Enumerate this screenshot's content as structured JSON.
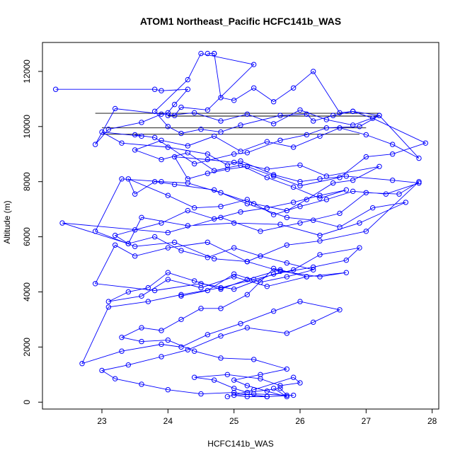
{
  "chart_data": {
    "type": "scatter",
    "title": "ATOM1 Northeast_Pacific HCFC141b_WAS",
    "xlabel": "HCFC141b_WAS",
    "ylabel": "Altitude (m)",
    "xlim": [
      22.1,
      28.1
    ],
    "ylim": [
      -250,
      13050
    ],
    "xticks": [
      23,
      24,
      25,
      26,
      27,
      28
    ],
    "yticks": [
      0,
      2000,
      4000,
      6000,
      8000,
      10000,
      12000
    ],
    "grid": false,
    "legend": "none",
    "colors": {
      "series": "#0000ff",
      "axis": "#000000",
      "background": "#ffffff"
    },
    "series": [
      {
        "mode": "lines+markers",
        "x": [
          22.3,
          23.8,
          23.9,
          24.3,
          24.1,
          24.0,
          23.9,
          23.6,
          23.1,
          22.9,
          23.2,
          24.1,
          24.2,
          24.6,
          25.3,
          24.5,
          24.3,
          23.8,
          24.0,
          24.2,
          24.5,
          24.8,
          25.1,
          25.7,
          26.1,
          26.2,
          26.5,
          26.8,
          27.2,
          26.9,
          26.4,
          26.1,
          25.7,
          25.2,
          25.0,
          24.4,
          23.8,
          23.5,
          23.6,
          23.0,
          23.3,
          24.0,
          24.6,
          24.9,
          25.1,
          25.6,
          26.0,
          26.3,
          26.7,
          27.4,
          27.8,
          27.3,
          26.8,
          26.4,
          26.0,
          25.6,
          25.2,
          24.8,
          24.4,
          24.0,
          23.4,
          23.5,
          23.8,
          24.1,
          24.7,
          25.2,
          25.8,
          26.2,
          26.6,
          27.1,
          27.6,
          26.9,
          26.3,
          25.7,
          25.0,
          24.3,
          23.6,
          23.4,
          22.4,
          24.0,
          24.8,
          25.4,
          26.0,
          26.6,
          27.0,
          27.5,
          27.8,
          27.0,
          26.3,
          25.8,
          25.2,
          24.6,
          24.0,
          23.5,
          23.2,
          22.9,
          23.8,
          24.5,
          25.0,
          25.6,
          26.2,
          26.7,
          26.9,
          26.3,
          25.9,
          25.3,
          24.8,
          24.2,
          23.7,
          23.1,
          22.7,
          23.3,
          23.9,
          24.2,
          24.6,
          25.1,
          25.6,
          26.0,
          26.6,
          26.2,
          25.8,
          25.2,
          24.8,
          24.3,
          23.9,
          23.4,
          23.0,
          23.2,
          23.6,
          24.0,
          24.5,
          25.0,
          25.5,
          25.9,
          25.5,
          25.2,
          25.0,
          25.3,
          25.8,
          25.7,
          25.2,
          25.0,
          24.7,
          24.4,
          24.9,
          25.4,
          25.7,
          26.0,
          25.9,
          25.3,
          24.9
        ],
        "y": [
          11350,
          11350,
          11300,
          11350,
          10800,
          10500,
          10450,
          10150,
          9900,
          9350,
          10650,
          10400,
          10700,
          10600,
          12250,
          12650,
          11700,
          10550,
          10000,
          9750,
          9900,
          9800,
          10050,
          10400,
          10450,
          10200,
          10400,
          10550,
          10400,
          10000,
          9950,
          9700,
          9500,
          9050,
          9000,
          8650,
          9600,
          9700,
          9650,
          9800,
          9400,
          9250,
          9000,
          8600,
          8750,
          8250,
          8000,
          8100,
          8200,
          8050,
          7950,
          7550,
          7650,
          7350,
          7100,
          6800,
          7350,
          7100,
          7050,
          7500,
          8100,
          7550,
          8000,
          7900,
          7700,
          7200,
          6700,
          6600,
          6350,
          7050,
          7250,
          6500,
          6050,
          6450,
          6500,
          6400,
          6700,
          5750,
          6500,
          6150,
          6700,
          6200,
          6500,
          6850,
          7600,
          7550,
          8000,
          6200,
          5850,
          5700,
          5100,
          5800,
          5600,
          5300,
          5700,
          4300,
          4050,
          4300,
          4100,
          4650,
          4900,
          5150,
          5600,
          5350,
          4800,
          4450,
          4150,
          3900,
          3650,
          3450,
          1400,
          1850,
          2100,
          2000,
          2450,
          2850,
          3300,
          3650,
          3350,
          2900,
          2500,
          2700,
          2400,
          1900,
          1650,
          1350,
          1150,
          850,
          650,
          450,
          300,
          350,
          200,
          250,
          200,
          200,
          250,
          300,
          250,
          500,
          350,
          500,
          800,
          900,
          1000,
          850,
          600,
          700,
          900,
          450,
          200
        ]
      },
      {
        "mode": "lines+markers",
        "x": [
          24.7,
          24.6,
          24.7,
          24.8,
          25.0,
          25.3,
          25.6,
          25.9,
          26.2,
          26.6,
          26.8,
          27.1,
          27.9,
          27.4,
          27.0,
          26.6,
          26.0,
          25.6,
          25.2,
          24.9,
          24.6,
          24.3,
          24.1,
          24.6,
          25.0,
          25.5,
          26.0,
          26.4,
          27.2,
          26.8,
          26.5,
          26.1,
          25.8,
          25.3,
          24.8,
          24.3,
          23.9,
          23.3,
          22.9,
          23.5,
          24.1,
          24.7,
          25.2,
          25.7,
          26.3,
          26.7,
          26.1,
          25.5,
          25.0,
          24.5,
          24.0,
          23.6,
          23.1,
          23.4,
          23.7,
          24.0,
          24.4,
          24.8,
          25.2,
          25.7,
          26.1,
          25.6,
          25.2,
          24.8,
          24.5,
          24.2,
          23.9,
          23.6,
          23.3,
          23.6,
          24.0,
          24.4,
          24.8,
          25.3,
          25.8,
          25.4,
          25.0,
          25.2,
          25.5,
          25.8,
          25.6
        ],
        "y": [
          12650,
          12650,
          12650,
          11050,
          10950,
          11400,
          10900,
          11400,
          12000,
          10500,
          10550,
          10300,
          9400,
          9000,
          8900,
          8150,
          7850,
          8200,
          8550,
          8450,
          8300,
          8100,
          8900,
          8800,
          8700,
          8450,
          8600,
          8200,
          8550,
          8050,
          7950,
          7350,
          6950,
          7200,
          7600,
          7950,
          8000,
          8100,
          6200,
          5650,
          5800,
          5200,
          5100,
          4750,
          4550,
          4700,
          4550,
          4200,
          4550,
          4150,
          4450,
          3850,
          3650,
          4000,
          4150,
          4700,
          4400,
          4100,
          4450,
          4800,
          4550,
          4850,
          3900,
          3400,
          3400,
          3000,
          2600,
          2700,
          2350,
          2200,
          2250,
          1850,
          1600,
          1550,
          1200,
          1000,
          800,
          600,
          400,
          200,
          500
        ]
      },
      {
        "mode": "lines+markers",
        "x": [
          24.0,
          24.4,
          24.8,
          25.2,
          25.6,
          26.0,
          26.4,
          26.8,
          27.2,
          27.8,
          27.4,
          27.0,
          26.6,
          26.3,
          25.9,
          25.5,
          25.1,
          24.7,
          24.3,
          23.9,
          23.5,
          23.9,
          24.3,
          24.7,
          25.1,
          25.5,
          25.9,
          26.3,
          26.7,
          26.3,
          25.9,
          25.5,
          25.1,
          24.7,
          24.3,
          23.9,
          23.5,
          23.2,
          23.4,
          23.8,
          24.2,
          24.6,
          25.0,
          25.4,
          25.8,
          26.2,
          25.8,
          25.4,
          25.0,
          24.6,
          24.2
        ],
        "y": [
          10400,
          10500,
          10200,
          10450,
          10100,
          10600,
          10250,
          10050,
          10400,
          8850,
          9350,
          9700,
          9950,
          9650,
          9250,
          9450,
          9100,
          9650,
          9300,
          9500,
          9150,
          8800,
          9050,
          8400,
          8600,
          8150,
          7800,
          7400,
          7700,
          7500,
          7250,
          7050,
          6900,
          6650,
          6950,
          6500,
          6250,
          6050,
          5750,
          6000,
          5500,
          5250,
          5600,
          5300,
          5050,
          4800,
          4550,
          4350,
          4650,
          4050,
          3850
        ]
      }
    ],
    "reference_lines": [
      {
        "x": [
          22.9,
          27.2
        ],
        "y": [
          10480,
          10480
        ]
      },
      {
        "x": [
          23.0,
          27.0
        ],
        "y": [
          9950,
          9950
        ]
      },
      {
        "x": [
          23.0,
          26.9
        ],
        "y": [
          9720,
          9720
        ]
      },
      {
        "x": [
          24.0,
          27.2
        ],
        "y": [
          10380,
          10380
        ]
      }
    ]
  }
}
